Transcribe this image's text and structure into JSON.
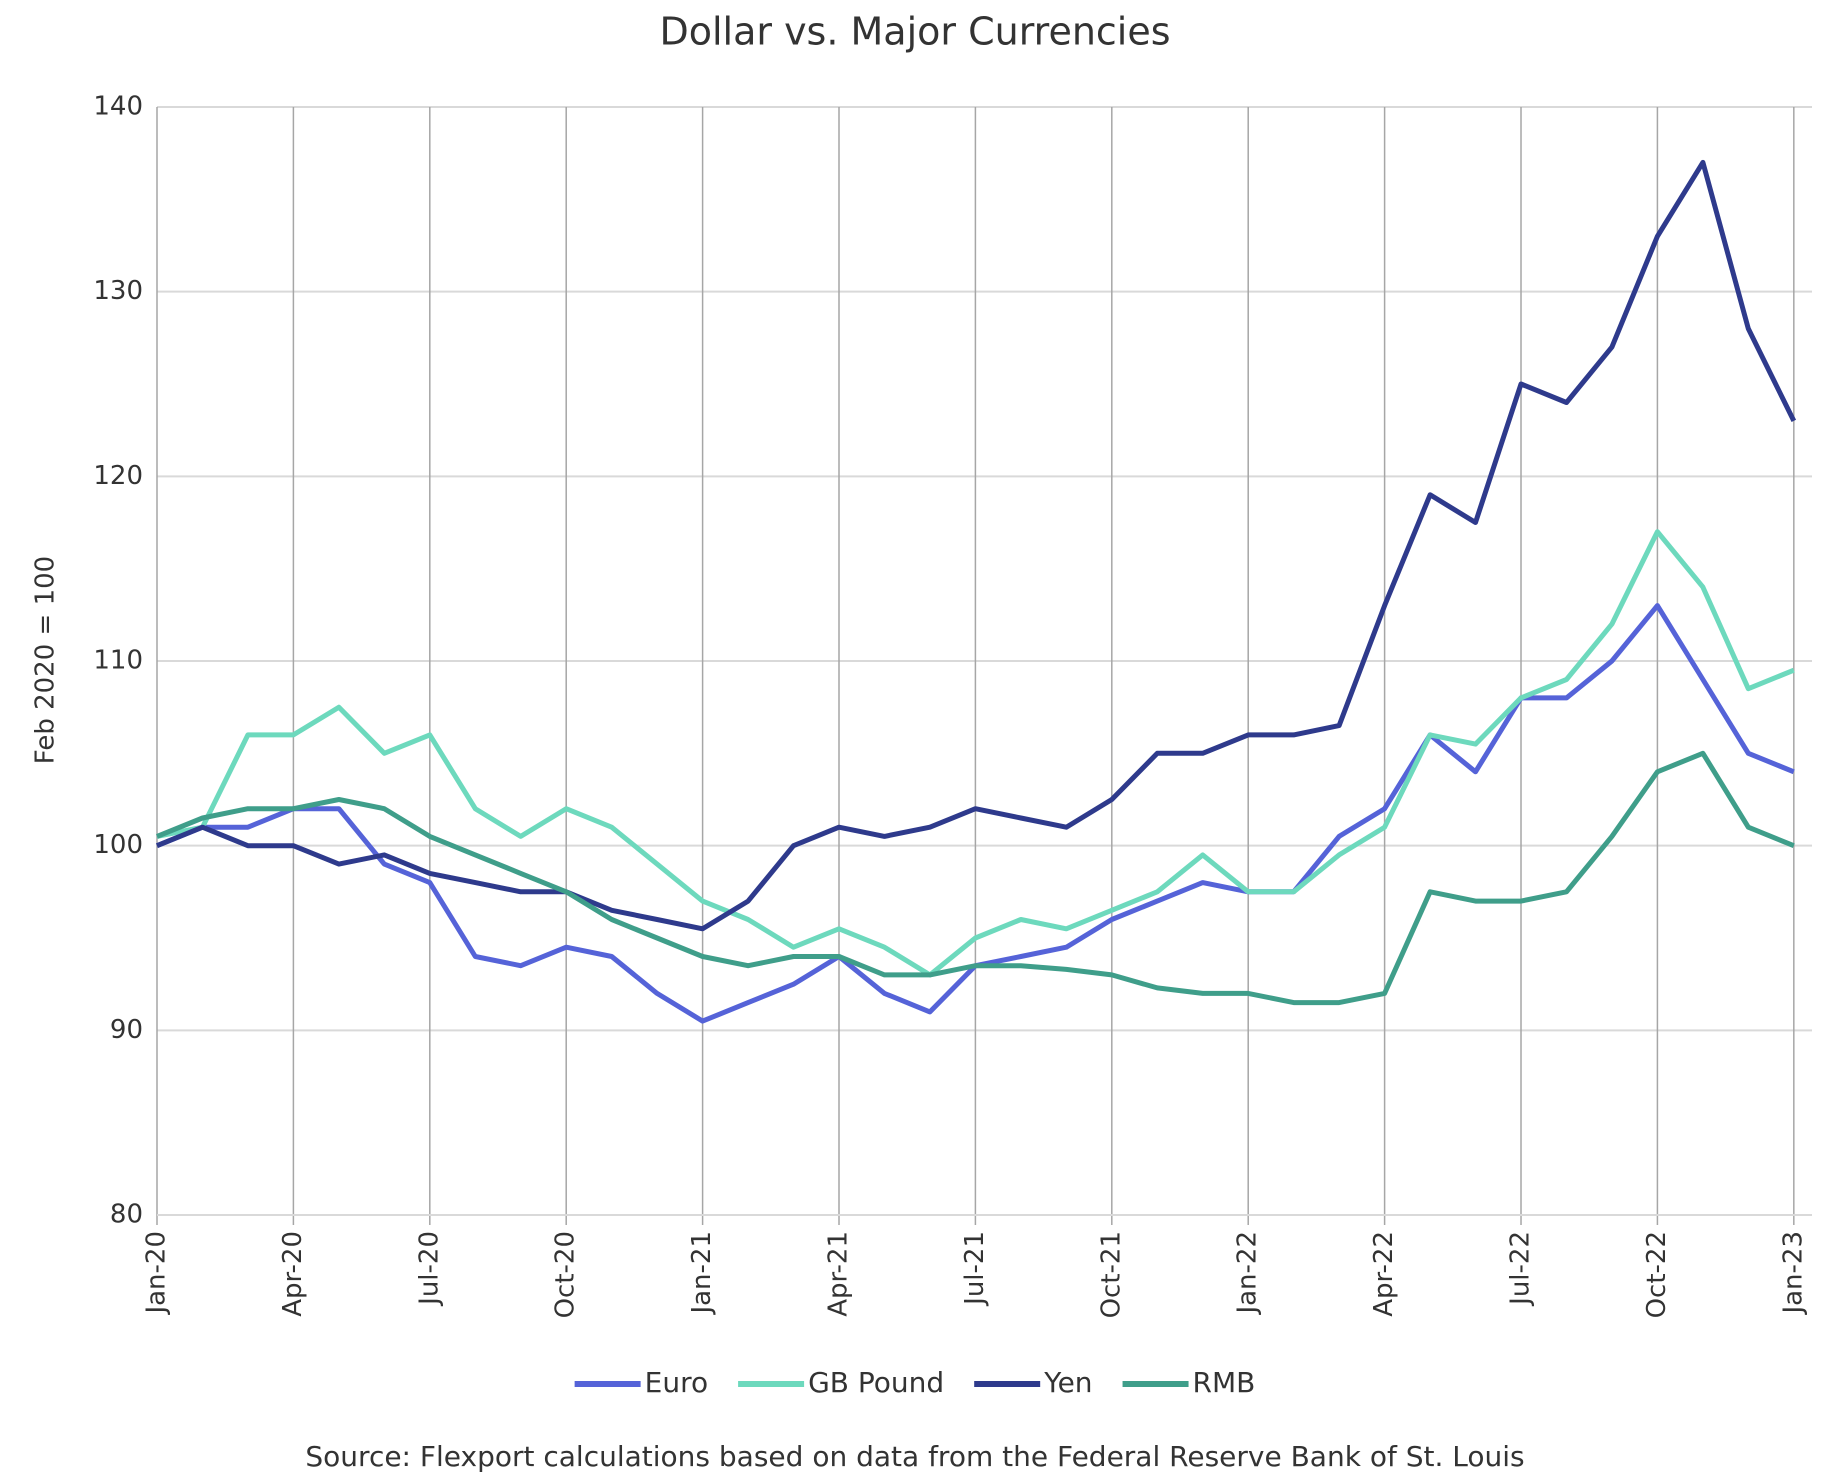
{
  "chart_data": {
    "type": "line",
    "title": "Dollar vs. Major Currencies",
    "y_label": "Feb 2020 = 100",
    "source": "Source: Flexport calculations based on data from the Federal Reserve Bank of St. Louis",
    "categories": [
      "Jan-20",
      null,
      null,
      "Apr-20",
      null,
      null,
      "Jul-20",
      null,
      null,
      "Oct-20",
      null,
      null,
      "Jan-21",
      null,
      null,
      "Apr-21",
      null,
      null,
      "Jul-21",
      null,
      null,
      "Oct-21",
      null,
      null,
      "Jan-22",
      null,
      null,
      "Apr-22",
      null,
      null,
      "Jul-22",
      null,
      null,
      "Oct-22",
      null,
      null,
      "Jan-23"
    ],
    "ylim": [
      80,
      140
    ],
    "yticks": [
      80,
      90,
      100,
      110,
      120,
      130,
      140
    ],
    "grid": true,
    "legend": "bottom",
    "series": [
      {
        "name": "Euro",
        "color": "#5563d8",
        "values": [
          100,
          101,
          101,
          102,
          102,
          99,
          98,
          94,
          93.5,
          94.5,
          94,
          92,
          90.5,
          91.5,
          92.5,
          94,
          92,
          91,
          93.5,
          94,
          94.5,
          96,
          97,
          98,
          97.5,
          97.5,
          100.5,
          102,
          106,
          104,
          108,
          108,
          110,
          113,
          109,
          105,
          104
        ]
      },
      {
        "name": "GB Pound",
        "color": "#6dd9bd",
        "values": [
          100.5,
          101,
          106,
          106,
          107.5,
          105,
          106,
          102,
          100.5,
          102,
          101,
          99,
          97,
          96,
          94.5,
          95.5,
          94.5,
          93,
          95,
          96,
          95.5,
          96.5,
          97.5,
          99.5,
          97.5,
          97.5,
          99.5,
          101,
          106,
          105.5,
          108,
          109,
          112,
          117,
          114,
          108.5,
          109.5
        ]
      },
      {
        "name": "Yen",
        "color": "#2e3a8c",
        "values": [
          100,
          101,
          100,
          100,
          99,
          99.5,
          98.5,
          98,
          97.5,
          97.5,
          96.5,
          96,
          95.5,
          97,
          100,
          101,
          100.5,
          101,
          102,
          101.5,
          101,
          102.5,
          105,
          105,
          106,
          106,
          106.5,
          113,
          119,
          117.5,
          125,
          124,
          127,
          133,
          137,
          128,
          123
        ]
      },
      {
        "name": "RMB",
        "color": "#3f9e8a",
        "values": [
          100.5,
          101.5,
          102,
          102,
          102.5,
          102,
          100.5,
          99.5,
          98.5,
          97.5,
          96,
          95,
          94,
          93.5,
          94,
          94,
          93,
          93,
          93.5,
          93.5,
          93.3,
          93,
          92.3,
          92,
          92,
          91.5,
          91.5,
          92,
          97.5,
          97,
          97,
          97.5,
          100.5,
          104,
          105,
          101,
          100
        ]
      }
    ]
  }
}
